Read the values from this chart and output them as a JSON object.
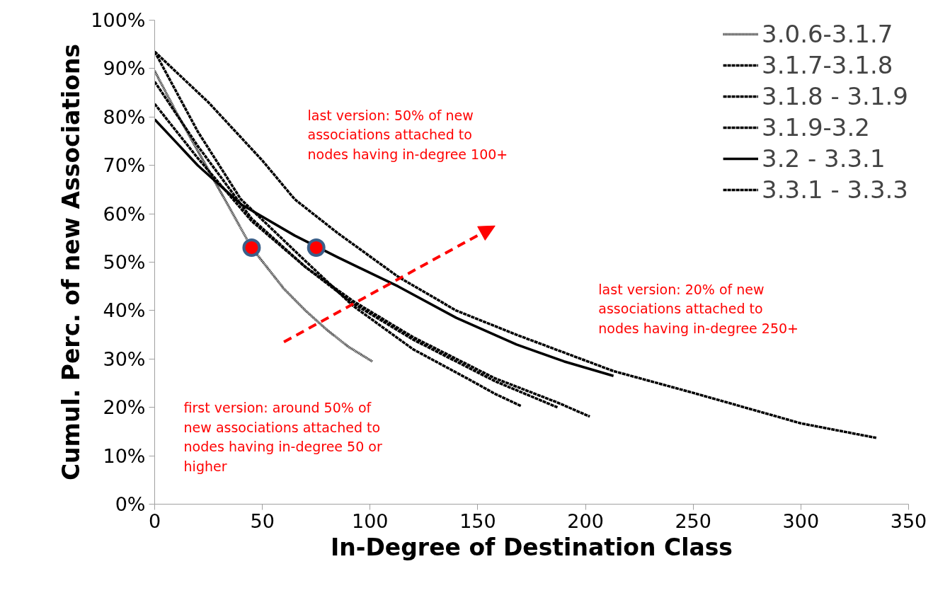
{
  "chart_data": {
    "type": "line",
    "xlabel": "In-Degree of Destination Class",
    "ylabel": "Cumul. Perc. of new Associations",
    "xlim": [
      0,
      350
    ],
    "xticks": [
      0,
      50,
      100,
      150,
      200,
      250,
      300,
      350
    ],
    "ylim": [
      0,
      100
    ],
    "yticks": [
      {
        "value": 0,
        "label": "0%"
      },
      {
        "value": 10,
        "label": "10%"
      },
      {
        "value": 20,
        "label": "20%"
      },
      {
        "value": 30,
        "label": "30%"
      },
      {
        "value": 40,
        "label": "40%"
      },
      {
        "value": 50,
        "label": "50%"
      },
      {
        "value": 60,
        "label": "60%"
      },
      {
        "value": 70,
        "label": "70%"
      },
      {
        "value": 80,
        "label": "80%"
      },
      {
        "value": 90,
        "label": "90%"
      },
      {
        "value": 100,
        "label": "100%"
      }
    ],
    "grid": false,
    "legend": "top right",
    "marker": "none",
    "series": [
      {
        "name": "3.0.6-3.1.7",
        "color": "#000000",
        "line_style": "dotted",
        "x": [
          0,
          10,
          20,
          30,
          45,
          60,
          70,
          80,
          90,
          101
        ],
        "values": [
          89.5,
          81,
          73,
          65,
          53,
          44.5,
          40,
          36,
          32.5,
          29.5
        ]
      },
      {
        "name": "3.1.7-3.1.8",
        "color": "#000000",
        "line_style": "dashed",
        "x": [
          0,
          20,
          40,
          67,
          92,
          120,
          145,
          158,
          170
        ],
        "values": [
          93.5,
          77,
          63,
          51.5,
          41,
          32,
          26,
          22.8,
          20.3
        ]
      },
      {
        "name": "3.1.8 - 3.1.9",
        "color": "#000000",
        "line_style": "dashed",
        "x": [
          0,
          20,
          45,
          70,
          92,
          120,
          158,
          187
        ],
        "values": [
          87.3,
          74,
          59,
          49,
          41.5,
          34,
          25.4,
          20
        ]
      },
      {
        "name": "3.1.9-3.2",
        "color": "#000000",
        "line_style": "dashed",
        "x": [
          0,
          20,
          45,
          70,
          92,
          120,
          158,
          187,
          202
        ],
        "values": [
          82.7,
          71.5,
          58.5,
          49,
          42,
          34.5,
          26,
          21,
          18.1
        ]
      },
      {
        "name": "3.2 - 3.3.1",
        "color": "#000000",
        "line_style": "solid",
        "x": [
          0,
          20,
          40,
          65,
          85,
          113,
          140,
          168,
          190,
          213
        ],
        "values": [
          79.5,
          70,
          62,
          55.5,
          51,
          45,
          38.5,
          33,
          29.5,
          26.5
        ]
      },
      {
        "name": "3.3.1 - 3.3.3",
        "color": "#000000",
        "line_style": "dashed",
        "x": [
          0,
          25,
          50,
          65,
          85,
          113,
          140,
          168,
          213,
          250,
          300,
          335
        ],
        "values": [
          93.5,
          83,
          71,
          63,
          56,
          47,
          40,
          35,
          27.5,
          23,
          16.7,
          13.7
        ]
      },
      {
        "type": "scatter",
        "marker": "circle",
        "color": "#ff0000",
        "x": [
          45,
          75
        ],
        "values": [
          53,
          53
        ]
      }
    ],
    "annotations": [
      "last version: 50% of new associations attached to nodes having in-degree 100+",
      "last version: 20% of new associations attached to nodes having in-degree 250+",
      "first version: around 50% of new associations attached to nodes having in-degree 50 or higher"
    ]
  }
}
